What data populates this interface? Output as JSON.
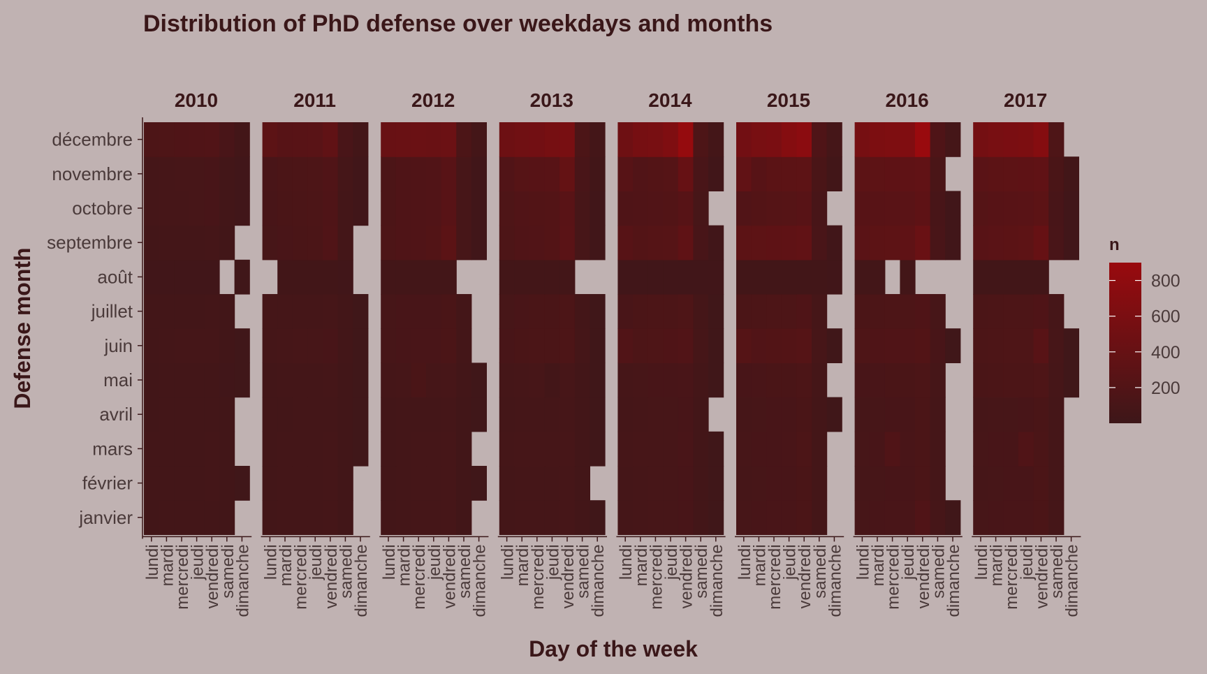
{
  "chart_data": {
    "type": "heatmap",
    "title": "Distribution of PhD defense over weekdays and months",
    "xlabel": "Day of the week",
    "ylabel": "Defense month",
    "facets": [
      "2010",
      "2011",
      "2012",
      "2013",
      "2014",
      "2015",
      "2016",
      "2017"
    ],
    "x_categories": [
      "lundi",
      "mardi",
      "mercredi",
      "jeudi",
      "vendredi",
      "samedi",
      "dimanche"
    ],
    "y_categories": [
      "janvier",
      "février",
      "mars",
      "avril",
      "mai",
      "juin",
      "juillet",
      "août",
      "septembre",
      "octobre",
      "novembre",
      "décembre"
    ],
    "legend": {
      "title": "n",
      "position": "right",
      "ticks": [
        200,
        400,
        600,
        800
      ],
      "range": [
        0,
        900
      ],
      "color_low": "#3d1719",
      "color_high": "#990a0e"
    },
    "background_color": "#c0b2b2",
    "text_color": "#3a1719",
    "values": {
      "2010": [
        [
          50,
          55,
          55,
          55,
          60,
          45,
          null
        ],
        [
          55,
          60,
          60,
          60,
          65,
          45,
          30
        ],
        [
          55,
          60,
          60,
          60,
          65,
          45,
          null
        ],
        [
          50,
          55,
          55,
          55,
          60,
          45,
          null
        ],
        [
          50,
          55,
          55,
          55,
          60,
          40,
          30
        ],
        [
          60,
          70,
          75,
          75,
          80,
          50,
          30
        ],
        [
          55,
          60,
          60,
          60,
          65,
          45,
          null
        ],
        [
          40,
          40,
          40,
          40,
          40,
          null,
          30
        ],
        [
          60,
          65,
          70,
          70,
          80,
          50,
          null
        ],
        [
          75,
          85,
          90,
          95,
          110,
          60,
          40
        ],
        [
          80,
          90,
          95,
          100,
          110,
          60,
          40
        ],
        [
          160,
          170,
          180,
          190,
          200,
          120,
          60
        ]
      ],
      "2011": [
        [
          60,
          65,
          70,
          70,
          75,
          50,
          null
        ],
        [
          60,
          65,
          70,
          70,
          75,
          50,
          null
        ],
        [
          60,
          65,
          70,
          70,
          75,
          50,
          30
        ],
        [
          55,
          60,
          65,
          65,
          70,
          50,
          30
        ],
        [
          60,
          65,
          70,
          70,
          75,
          50,
          30
        ],
        [
          75,
          90,
          95,
          100,
          110,
          60,
          30
        ],
        [
          75,
          80,
          80,
          80,
          90,
          60,
          30
        ],
        [
          null,
          50,
          50,
          50,
          50,
          40,
          null
        ],
        [
          100,
          120,
          130,
          140,
          190,
          70,
          null
        ],
        [
          110,
          130,
          140,
          150,
          180,
          70,
          40
        ],
        [
          120,
          140,
          150,
          160,
          190,
          80,
          40
        ],
        [
          300,
          250,
          260,
          270,
          340,
          120,
          60
        ]
      ],
      "2012": [
        [
          60,
          70,
          75,
          75,
          85,
          50,
          null
        ],
        [
          60,
          70,
          75,
          75,
          85,
          50,
          30
        ],
        [
          60,
          70,
          75,
          75,
          90,
          50,
          null
        ],
        [
          55,
          65,
          70,
          70,
          80,
          50,
          30
        ],
        [
          75,
          90,
          130,
          90,
          100,
          60,
          30
        ],
        [
          95,
          110,
          115,
          120,
          135,
          70,
          null
        ],
        [
          95,
          110,
          110,
          110,
          130,
          70,
          null
        ],
        [
          60,
          60,
          60,
          60,
          60,
          null,
          null
        ],
        [
          160,
          180,
          190,
          210,
          290,
          100,
          40
        ],
        [
          150,
          180,
          190,
          200,
          260,
          100,
          40
        ],
        [
          150,
          180,
          190,
          200,
          260,
          100,
          40
        ],
        [
          420,
          430,
          440,
          430,
          450,
          150,
          70
        ]
      ],
      "2013": [
        [
          70,
          80,
          80,
          80,
          90,
          60,
          30
        ],
        [
          70,
          80,
          80,
          80,
          90,
          60,
          null
        ],
        [
          75,
          85,
          85,
          85,
          95,
          60,
          30
        ],
        [
          70,
          75,
          80,
          80,
          90,
          55,
          30
        ],
        [
          75,
          90,
          95,
          60,
          100,
          60,
          30
        ],
        [
          110,
          130,
          135,
          140,
          155,
          80,
          30
        ],
        [
          100,
          120,
          125,
          130,
          145,
          70,
          30
        ],
        [
          60,
          60,
          60,
          60,
          60,
          null,
          null
        ],
        [
          160,
          190,
          200,
          220,
          280,
          100,
          40
        ],
        [
          170,
          200,
          210,
          220,
          270,
          100,
          40
        ],
        [
          200,
          240,
          250,
          260,
          380,
          120,
          50
        ],
        [
          470,
          500,
          520,
          560,
          580,
          150,
          70
        ]
      ],
      "2014": [
        [
          80,
          90,
          95,
          95,
          110,
          60,
          30
        ],
        [
          80,
          90,
          95,
          95,
          110,
          60,
          30
        ],
        [
          85,
          95,
          100,
          100,
          115,
          60,
          30
        ],
        [
          80,
          90,
          95,
          95,
          110,
          60,
          null
        ],
        [
          90,
          100,
          105,
          110,
          120,
          70,
          30
        ],
        [
          200,
          160,
          170,
          175,
          195,
          90,
          30
        ],
        [
          120,
          140,
          145,
          150,
          170,
          80,
          30
        ],
        [
          40,
          40,
          40,
          40,
          40,
          40,
          40
        ],
        [
          250,
          220,
          230,
          240,
          330,
          110,
          40
        ],
        [
          180,
          190,
          200,
          210,
          250,
          100,
          null
        ],
        [
          250,
          200,
          220,
          230,
          400,
          120,
          40
        ],
        [
          480,
          560,
          580,
          650,
          860,
          160,
          70
        ]
      ],
      "2015": [
        [
          100,
          110,
          115,
          120,
          140,
          70,
          null
        ],
        [
          90,
          100,
          105,
          110,
          130,
          70,
          null
        ],
        [
          95,
          105,
          110,
          115,
          150,
          70,
          null
        ],
        [
          90,
          100,
          105,
          110,
          125,
          70,
          30
        ],
        [
          110,
          120,
          125,
          130,
          150,
          80,
          null
        ],
        [
          230,
          200,
          210,
          215,
          230,
          100,
          30
        ],
        [
          140,
          150,
          155,
          160,
          180,
          90,
          null
        ],
        [
          50,
          50,
          50,
          50,
          50,
          50,
          40
        ],
        [
          300,
          310,
          320,
          330,
          350,
          120,
          40
        ],
        [
          200,
          220,
          230,
          240,
          260,
          110,
          null
        ],
        [
          350,
          250,
          290,
          300,
          310,
          130,
          50
        ],
        [
          520,
          580,
          600,
          700,
          760,
          180,
          80
        ]
      ],
      "2016": [
        [
          100,
          110,
          115,
          120,
          190,
          90,
          30
        ],
        [
          90,
          100,
          105,
          110,
          140,
          80,
          null
        ],
        [
          95,
          105,
          190,
          115,
          140,
          80,
          null
        ],
        [
          90,
          100,
          105,
          110,
          135,
          80,
          null
        ],
        [
          110,
          120,
          125,
          130,
          150,
          90,
          null
        ],
        [
          170,
          180,
          185,
          190,
          210,
          110,
          30
        ],
        [
          140,
          150,
          155,
          160,
          180,
          100,
          null
        ],
        [
          60,
          60,
          null,
          60,
          null,
          null,
          null
        ],
        [
          280,
          300,
          310,
          330,
          430,
          120,
          40
        ],
        [
          250,
          260,
          270,
          280,
          320,
          110,
          40
        ],
        [
          300,
          310,
          320,
          330,
          350,
          130,
          null
        ],
        [
          560,
          620,
          640,
          660,
          920,
          180,
          80
        ]
      ],
      "2017": [
        [
          100,
          110,
          115,
          120,
          140,
          80,
          null
        ],
        [
          90,
          100,
          105,
          110,
          135,
          75,
          null
        ],
        [
          95,
          105,
          110,
          190,
          140,
          80,
          null
        ],
        [
          85,
          95,
          100,
          105,
          125,
          75,
          null
        ],
        [
          130,
          140,
          145,
          150,
          170,
          90,
          30
        ],
        [
          150,
          160,
          165,
          170,
          260,
          100,
          30
        ],
        [
          140,
          150,
          155,
          160,
          175,
          90,
          null
        ],
        [
          50,
          50,
          50,
          50,
          50,
          null,
          null
        ],
        [
          260,
          280,
          290,
          310,
          400,
          120,
          40
        ],
        [
          230,
          250,
          260,
          270,
          300,
          110,
          40
        ],
        [
          280,
          300,
          310,
          320,
          340,
          130,
          50
        ],
        [
          540,
          580,
          600,
          620,
          700,
          170,
          null
        ]
      ]
    }
  }
}
